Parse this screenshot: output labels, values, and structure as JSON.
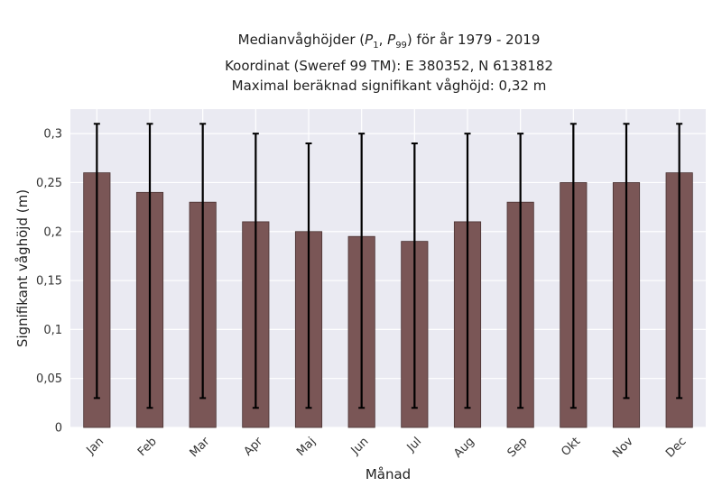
{
  "chart_data": {
    "type": "bar",
    "title_lines": [
      "Medianvåghöjder (P1, P99) för år 1979 - 2019",
      "Koordinat (Sweref 99 TM): E 380352, N 6138182",
      "Maximal beräknad signifikant våghöjd: 0,32 m"
    ],
    "title_math": {
      "prefix": "Medianvåghöjder (",
      "p1": "1",
      "p99": "99",
      "suffix": ") för år 1979 - 2019"
    },
    "xlabel": "Månad",
    "ylabel": "Signifikant våghöjd (m)",
    "categories": [
      "Jan",
      "Feb",
      "Mar",
      "Apr",
      "Maj",
      "Jun",
      "Jul",
      "Aug",
      "Sep",
      "Okt",
      "Nov",
      "Dec"
    ],
    "values": [
      0.26,
      0.24,
      0.23,
      0.21,
      0.2,
      0.195,
      0.19,
      0.21,
      0.23,
      0.25,
      0.25,
      0.26
    ],
    "error_low": [
      0.03,
      0.02,
      0.03,
      0.02,
      0.02,
      0.02,
      0.02,
      0.02,
      0.02,
      0.02,
      0.03,
      0.03
    ],
    "error_high": [
      0.31,
      0.31,
      0.31,
      0.3,
      0.29,
      0.3,
      0.29,
      0.3,
      0.3,
      0.31,
      0.31,
      0.31
    ],
    "ylim": [
      0,
      0.325
    ],
    "yticks": [
      0,
      0.05,
      0.1,
      0.15,
      0.2,
      0.25,
      0.3
    ],
    "ytick_labels": [
      "0",
      "0,05",
      "0,1",
      "0,15",
      "0,2",
      "0,25",
      "0,3"
    ],
    "grid": true,
    "colors": {
      "bar": "#7a5656",
      "bar_edge": "#4a3232",
      "error": "#000000",
      "background": "#eaeaf2",
      "grid": "#ffffff"
    }
  }
}
